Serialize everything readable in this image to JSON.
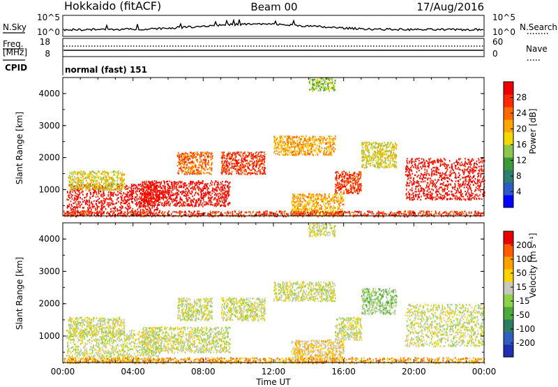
{
  "header": {
    "radar": "Hokkaido (fitACF)",
    "beam": "Beam 00",
    "date": "17/Aug/2016"
  },
  "nsky_panel": {
    "left_label": "N.Sky",
    "left_ticks": [
      "10^5",
      "10^0"
    ],
    "right_ticks": [
      "10^5",
      "10^0"
    ],
    "right_label": "N.Search"
  },
  "freq_panel": {
    "left_label_1": "Freq.",
    "left_label_2": "[MHz]",
    "left_ticks": [
      "18",
      "8"
    ],
    "right_ticks": [
      "60",
      "0"
    ],
    "right_label": "Nave",
    "cpid_label": "CPID",
    "mode_text": "normal (fast) 151"
  },
  "chart_data": [
    {
      "type": "heatmap",
      "name": "power",
      "ylabel": "Slant Range [km]",
      "yticks": [
        "4000",
        "3000",
        "2000",
        "1000"
      ],
      "ytick_values": [
        4000,
        3000,
        2000,
        1000
      ],
      "ylim": [
        180,
        4500
      ],
      "xlim_hours": [
        0,
        24
      ],
      "colorbar": {
        "label": "Power [dB]",
        "ticks": [
          "28",
          "24",
          "20",
          "16",
          "12",
          "8",
          "4"
        ],
        "colors": [
          "#0000ff",
          "#2f5bc8",
          "#2e7d6e",
          "#3a9a3a",
          "#8cc84b",
          "#f0d800",
          "#ffa500",
          "#ff6a00",
          "#ff2a00",
          "#ee0000"
        ]
      },
      "regions": [
        {
          "x0": 0.2,
          "x1": 5.5,
          "y0": 200,
          "y1": 1200,
          "level": 9
        },
        {
          "x0": 0.3,
          "x1": 3.5,
          "y0": 1000,
          "y1": 1600,
          "level": 5
        },
        {
          "x0": 4.5,
          "x1": 9.5,
          "y0": 500,
          "y1": 1300,
          "level": 9
        },
        {
          "x0": 6.5,
          "x1": 8.5,
          "y0": 1500,
          "y1": 2200,
          "level": 7
        },
        {
          "x0": 9.0,
          "x1": 11.5,
          "y0": 1500,
          "y1": 2200,
          "level": 8
        },
        {
          "x0": 12.0,
          "x1": 15.5,
          "y0": 2100,
          "y1": 2700,
          "level": 6
        },
        {
          "x0": 15.5,
          "x1": 17.0,
          "y0": 900,
          "y1": 1600,
          "level": 8
        },
        {
          "x0": 17.0,
          "x1": 19.0,
          "y0": 1700,
          "y1": 2500,
          "level": 5
        },
        {
          "x0": 19.5,
          "x1": 24.0,
          "y0": 700,
          "y1": 2000,
          "level": 9
        },
        {
          "x0": 14.0,
          "x1": 15.5,
          "y0": 4100,
          "y1": 4500,
          "level": 4
        },
        {
          "x0": 13.0,
          "x1": 16.0,
          "y0": 200,
          "y1": 900,
          "level": 6
        },
        {
          "x0": 0.0,
          "x1": 24.0,
          "y0": 180,
          "y1": 350,
          "level": 8
        }
      ]
    },
    {
      "type": "heatmap",
      "name": "velocity",
      "ylabel": "Slant Range [km]",
      "yticks": [
        "4000",
        "3000",
        "2000",
        "1000"
      ],
      "ytick_values": [
        4000,
        3000,
        2000,
        1000
      ],
      "ylim": [
        180,
        4500
      ],
      "xlim_hours": [
        0,
        24
      ],
      "xticks": [
        "00:00",
        "04:00",
        "08:00",
        "12:00",
        "16:00",
        "20:00",
        "00:00"
      ],
      "xlabel": "Time UT",
      "colorbar": {
        "label": "Velocity [m s⁻¹]",
        "ticks": [
          "200",
          "100",
          "50",
          "15",
          "-15",
          "-50",
          "-100",
          "-200"
        ],
        "colors": [
          "#1e2fb0",
          "#2f5fc0",
          "#2e7d5e",
          "#4daa3c",
          "#8fd24a",
          "#c8c8c0",
          "#ffd200",
          "#ffa000",
          "#ff5a00",
          "#e80000"
        ]
      },
      "regions": [
        {
          "x0": 0.2,
          "x1": 5.5,
          "y0": 200,
          "y1": 1200,
          "level": 5
        },
        {
          "x0": 0.3,
          "x1": 3.5,
          "y0": 1000,
          "y1": 1600,
          "level": 5
        },
        {
          "x0": 4.5,
          "x1": 9.5,
          "y0": 500,
          "y1": 1300,
          "level": 5
        },
        {
          "x0": 6.5,
          "x1": 8.5,
          "y0": 1500,
          "y1": 2200,
          "level": 5
        },
        {
          "x0": 9.0,
          "x1": 11.5,
          "y0": 1500,
          "y1": 2200,
          "level": 5
        },
        {
          "x0": 12.0,
          "x1": 15.5,
          "y0": 2100,
          "y1": 2700,
          "level": 5
        },
        {
          "x0": 15.5,
          "x1": 17.0,
          "y0": 900,
          "y1": 1600,
          "level": 5
        },
        {
          "x0": 17.0,
          "x1": 19.0,
          "y0": 1700,
          "y1": 2500,
          "level": 4
        },
        {
          "x0": 19.5,
          "x1": 24.0,
          "y0": 700,
          "y1": 2000,
          "level": 5
        },
        {
          "x0": 14.0,
          "x1": 15.5,
          "y0": 4100,
          "y1": 4500,
          "level": 5
        },
        {
          "x0": 13.0,
          "x1": 16.0,
          "y0": 200,
          "y1": 900,
          "level": 6
        },
        {
          "x0": 0.0,
          "x1": 24.0,
          "y0": 180,
          "y1": 350,
          "level": 7
        }
      ]
    }
  ]
}
